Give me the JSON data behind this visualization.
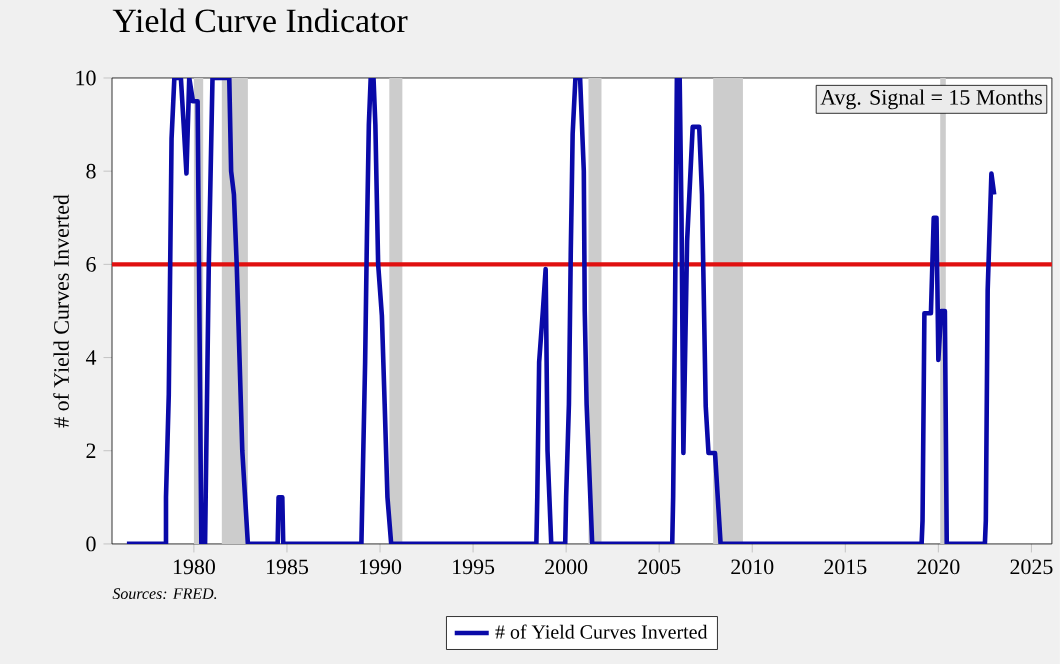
{
  "chart_data": {
    "type": "line",
    "title": "Yield Curve Indicator",
    "ylabel": "# of Yield Curves Inverted",
    "annotations": [
      "Avg. Signal = 15 Months",
      "Sources: FRED."
    ],
    "xlim": [
      1975.6,
      2026.1
    ],
    "xticks": [
      1980,
      1985,
      1990,
      1995,
      2000,
      2005,
      2010,
      2015,
      2020,
      2025
    ],
    "ylim": [
      0,
      10
    ],
    "yticks": [
      0,
      2,
      4,
      6,
      8,
      10
    ],
    "grid": false,
    "legend": "bottom",
    "marker": "none",
    "line_style": "solid",
    "ref_lines": [
      {
        "axis": "y",
        "value": 6,
        "color": "#e01010"
      }
    ],
    "bands": [
      {
        "axis": "x",
        "from": 1980.0,
        "to": 1980.5,
        "color": "#cccccc"
      },
      {
        "axis": "x",
        "from": 1981.5,
        "to": 1982.9,
        "color": "#cccccc"
      },
      {
        "axis": "x",
        "from": 1990.5,
        "to": 1991.2,
        "color": "#cccccc"
      },
      {
        "axis": "x",
        "from": 2001.2,
        "to": 2001.9,
        "color": "#cccccc"
      },
      {
        "axis": "x",
        "from": 2007.9,
        "to": 2009.5,
        "color": "#cccccc"
      },
      {
        "axis": "x",
        "from": 2020.1,
        "to": 2020.4,
        "color": "#cccccc"
      }
    ],
    "series": [
      {
        "name": "# of Yield Curves Inverted",
        "color": "#0a0aa8",
        "x": [
          1976.4,
          1978.5,
          1978.5,
          1978.65,
          1978.8,
          1978.95,
          1979.3,
          1979.45,
          1979.6,
          1979.75,
          1979.95,
          1980.2,
          1980.4,
          1980.6,
          1980.8,
          1981.0,
          1981.9,
          1982.0,
          1982.15,
          1982.3,
          1982.45,
          1982.6,
          1982.9,
          1984.5,
          1984.55,
          1984.75,
          1984.8,
          1989.0,
          1989.05,
          1989.2,
          1989.3,
          1989.4,
          1989.5,
          1989.65,
          1989.75,
          1989.9,
          1990.1,
          1990.25,
          1990.4,
          1990.6,
          1998.4,
          1998.45,
          1998.55,
          1998.75,
          1998.9,
          1999.0,
          1999.1,
          1999.2,
          1999.95,
          2000.0,
          2000.15,
          2000.25,
          2000.3,
          2000.35,
          2000.5,
          2000.75,
          2000.85,
          2000.95,
          2001.0,
          2001.1,
          2001.4,
          2005.7,
          2005.75,
          2005.85,
          2005.95,
          2006.1,
          2006.2,
          2006.3,
          2006.5,
          2006.8,
          2007.15,
          2007.3,
          2007.5,
          2007.65,
          2008.0,
          2008.3,
          2019.1,
          2019.15,
          2019.25,
          2019.6,
          2019.75,
          2019.9,
          2020.0,
          2020.15,
          2020.35,
          2020.45,
          2022.5,
          2022.55,
          2022.65,
          2022.85,
          2023.0
        ],
        "values": [
          0,
          0,
          1,
          3.2,
          8.7,
          10,
          10,
          9,
          7.95,
          10,
          9.5,
          9.5,
          0,
          0,
          6,
          10,
          10,
          8,
          7.5,
          6,
          4,
          2,
          0,
          0,
          1,
          1,
          0,
          0,
          1,
          3.9,
          6.7,
          9,
          10,
          10,
          9,
          6,
          4.9,
          3,
          1,
          0,
          0,
          1,
          3.9,
          5,
          5.9,
          2,
          1,
          0,
          0,
          1,
          3,
          6.3,
          7.5,
          8.8,
          10,
          10,
          9,
          8,
          5,
          3,
          0,
          0,
          1,
          5,
          10,
          10,
          7,
          1.95,
          6.5,
          8.95,
          8.95,
          7.5,
          2.95,
          1.95,
          1.95,
          0,
          0,
          0.5,
          4.95,
          4.95,
          7,
          7,
          3.95,
          5,
          5,
          0,
          0,
          0.5,
          5.45,
          7.95,
          7.5
        ]
      }
    ]
  }
}
